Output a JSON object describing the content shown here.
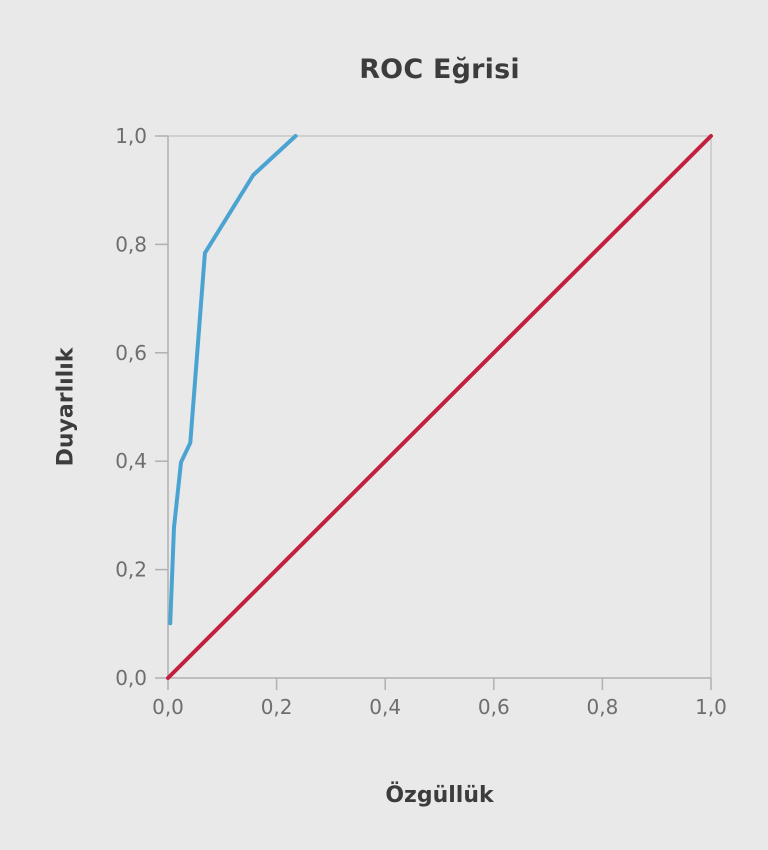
{
  "chart_data": {
    "type": "line",
    "title": "ROC Eğrisi",
    "xlabel": "Özgüllük",
    "ylabel": "Duyarlılık",
    "xlim": [
      0,
      1
    ],
    "ylim": [
      0,
      1
    ],
    "grid": false,
    "legend_position": "none",
    "x_ticks": {
      "values": [
        0,
        0.2,
        0.4,
        0.6,
        0.8,
        1.0
      ],
      "labels": [
        "0,0",
        "0,2",
        "0,4",
        "0,6",
        "0,8",
        "1,0"
      ]
    },
    "y_ticks": {
      "values": [
        0,
        0.2,
        0.4,
        0.6,
        0.8,
        1.0
      ],
      "labels": [
        "0,0",
        "0,2",
        "0,4",
        "0,6",
        "0,8",
        "1,0"
      ]
    },
    "series": [
      {
        "name": "reference-diagonal",
        "color": "#c2203e",
        "stroke_width": 4,
        "points": [
          [
            0,
            0
          ],
          [
            1,
            1
          ]
        ]
      },
      {
        "name": "roc-curve",
        "color": "#4ba3d2",
        "stroke_width": 4,
        "points": [
          [
            0.004,
            0.101
          ],
          [
            0.011,
            0.278
          ],
          [
            0.024,
            0.398
          ],
          [
            0.041,
            0.434
          ],
          [
            0.068,
            0.784
          ],
          [
            0.157,
            0.928
          ],
          [
            0.235,
            1.0
          ]
        ]
      }
    ],
    "colors": {
      "background": "#e9e9e9",
      "axis": "#b0b0b0",
      "plot_border": "#c8c8c8",
      "tick_label": "#6e6e6e",
      "text": "#3c3c3c"
    }
  }
}
